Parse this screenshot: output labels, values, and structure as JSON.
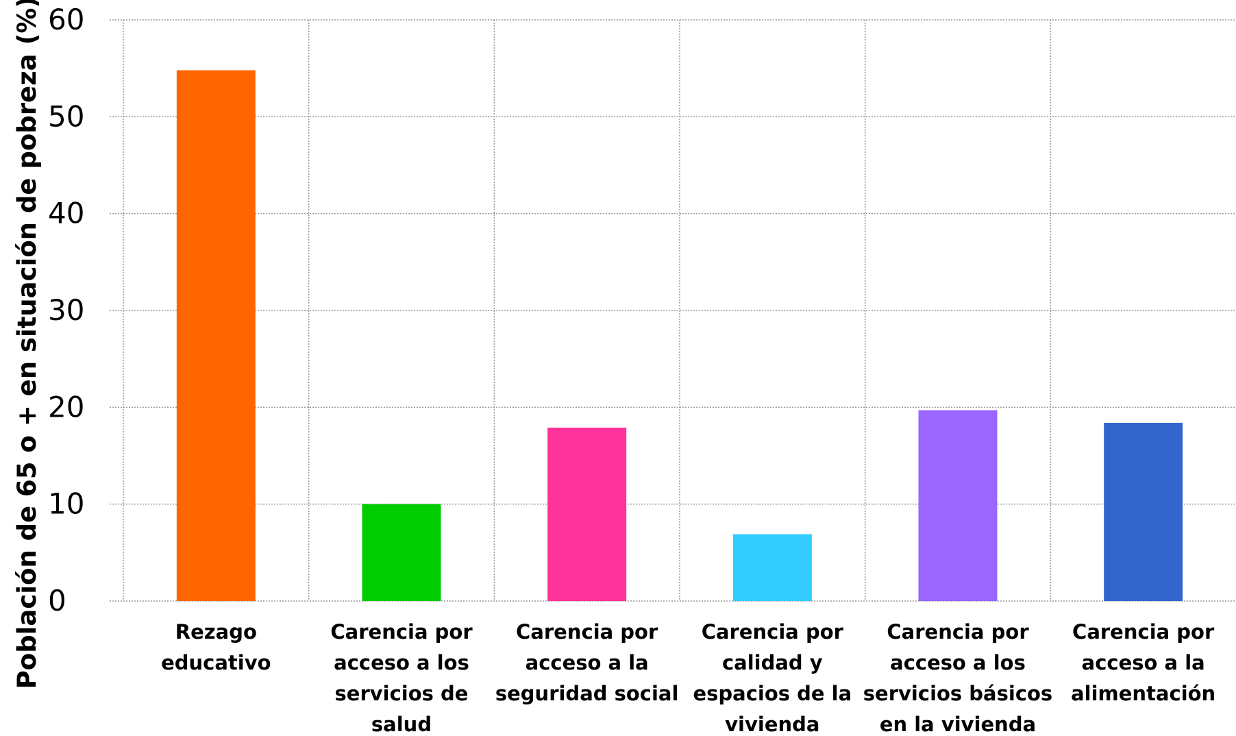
{
  "chart_data": {
    "type": "bar",
    "title": "",
    "xlabel": "",
    "ylabel": "Población de 65 o + en situación de pobreza (%)",
    "ylim": [
      0,
      60
    ],
    "yticks": [
      0,
      10,
      20,
      30,
      40,
      50,
      60
    ],
    "grid": true,
    "legend": "none",
    "categories": [
      [
        "Rezago",
        "educativo"
      ],
      [
        "Carencia por",
        "acceso a los",
        "servicios de",
        "salud"
      ],
      [
        "Carencia por",
        "acceso a la",
        "seguridad social"
      ],
      [
        "Carencia por",
        "calidad y",
        "espacios de la",
        "vivienda"
      ],
      [
        "Carencia por",
        "acceso a los",
        "servicios básicos",
        "en la vivienda"
      ],
      [
        "Carencia por",
        "acceso a la",
        "alimentación"
      ]
    ],
    "values": [
      54.8,
      10.0,
      17.9,
      6.9,
      19.7,
      18.4
    ],
    "colors": [
      "#ff6600",
      "#00cc00",
      "#ff3399",
      "#33ccff",
      "#9966ff",
      "#3366cc"
    ],
    "gridline_color": "#999999"
  }
}
